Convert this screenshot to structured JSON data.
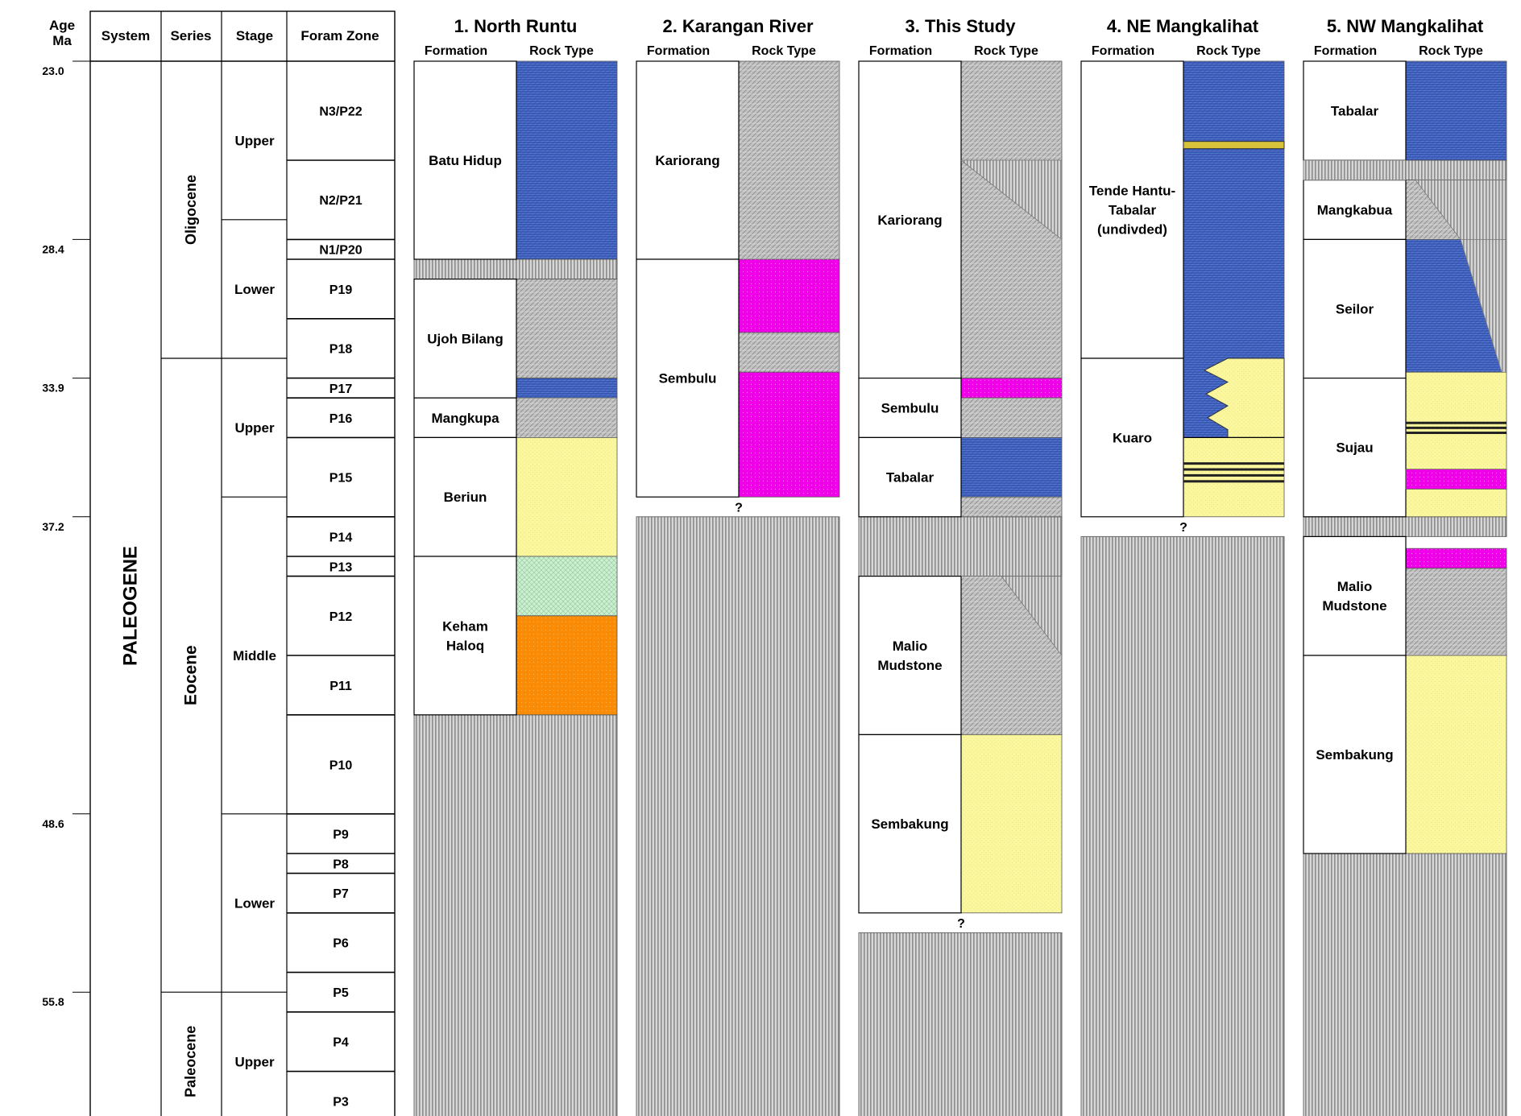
{
  "header": {
    "age": [
      "Age",
      "Ma"
    ],
    "system": "System",
    "series": "Series",
    "stage": "Stage",
    "foram_zone": "Foram Zone",
    "formation": "Formation",
    "rock_type": "Rock Type"
  },
  "ages": [
    "23.0",
    "28.4",
    "33.9",
    "37.2",
    "48.6",
    "55.8"
  ],
  "system_name": "PALEOGENE",
  "series": [
    {
      "name": "Oligocene",
      "label": "Oligocene",
      "top": 0,
      "bottom": 15
    },
    {
      "name": "Eocene",
      "label": "Eocene",
      "top": 15,
      "bottom": 47
    },
    {
      "name": "Paleocene",
      "label": "Paleocene",
      "top": 47,
      "bottom": 54
    }
  ],
  "stages": [
    {
      "name": "Upper",
      "top": 0,
      "bottom": 8
    },
    {
      "name": "Lower",
      "top": 8,
      "bottom": 15
    },
    {
      "name": "Upper",
      "top": 15,
      "bottom": 22
    },
    {
      "name": "Middle",
      "top": 22,
      "bottom": 38
    },
    {
      "name": "Lower",
      "top": 38,
      "bottom": 47
    },
    {
      "name": "Upper",
      "top": 47,
      "bottom": 54
    }
  ],
  "foram_zones": [
    {
      "name": "N3/P22",
      "top": 0,
      "bottom": 5
    },
    {
      "name": "N2/P21",
      "top": 5,
      "bottom": 9
    },
    {
      "name": "N1/P20",
      "top": 9,
      "bottom": 10
    },
    {
      "name": "P19",
      "top": 10,
      "bottom": 13
    },
    {
      "name": "P18",
      "top": 13,
      "bottom": 16
    },
    {
      "name": "P17",
      "top": 16,
      "bottom": 17
    },
    {
      "name": "P16",
      "top": 17,
      "bottom": 19
    },
    {
      "name": "P15",
      "top": 19,
      "bottom": 23
    },
    {
      "name": "P14",
      "top": 23,
      "bottom": 25
    },
    {
      "name": "P13",
      "top": 25,
      "bottom": 26
    },
    {
      "name": "P12",
      "top": 26,
      "bottom": 30
    },
    {
      "name": "P11",
      "top": 30,
      "bottom": 33
    },
    {
      "name": "P10",
      "top": 33,
      "bottom": 38
    },
    {
      "name": "P9",
      "top": 38,
      "bottom": 40
    },
    {
      "name": "P8",
      "top": 40,
      "bottom": 41
    },
    {
      "name": "P7",
      "top": 41,
      "bottom": 43
    },
    {
      "name": "P6",
      "top": 43,
      "bottom": 46
    },
    {
      "name": "P5",
      "top": 46,
      "bottom": 48
    },
    {
      "name": "P4",
      "top": 48,
      "bottom": 51
    },
    {
      "name": "P3",
      "top": 51,
      "bottom": 54
    }
  ],
  "rock_colors": {
    "blue": "#3A5BB8",
    "gray": "#B9B9B9",
    "magenta": "#F000E8",
    "yellow": "#FAF79E",
    "green": "#CDEED0",
    "orange": "#F98B06",
    "hiatus": "#BDBDBD"
  },
  "columns": [
    {
      "title": "1. North Runtu",
      "formations": [
        {
          "lines": [
            "Batu Hidup"
          ],
          "top": 0,
          "bottom": 10
        },
        {
          "lines": [
            "Ujoh Bilang"
          ],
          "top": 11,
          "bottom": 17
        },
        {
          "lines": [
            "Mangkupa"
          ],
          "top": 17,
          "bottom": 19
        },
        {
          "lines": [
            "Beriun"
          ],
          "top": 19,
          "bottom": 25
        },
        {
          "lines": [
            "Keham",
            "Haloq"
          ],
          "top": 25,
          "bottom": 33
        }
      ],
      "rocks": [
        {
          "color": "blue",
          "top": 0,
          "bottom": 10
        },
        {
          "color": "gray",
          "top": 11,
          "bottom": 16
        },
        {
          "color": "blue",
          "top": 16,
          "bottom": 17
        },
        {
          "color": "gray",
          "top": 17,
          "bottom": 19
        },
        {
          "color": "yellow",
          "top": 19,
          "bottom": 25
        },
        {
          "color": "green",
          "top": 25,
          "bottom": 28
        },
        {
          "color": "orange",
          "top": 28,
          "bottom": 33
        }
      ],
      "hiatus": [
        {
          "top": 10,
          "bottom": 11
        },
        {
          "top": 33,
          "bottom": 54
        }
      ],
      "question": []
    },
    {
      "title": "2. Karangan River",
      "formations": [
        {
          "lines": [
            "Kariorang"
          ],
          "top": 0,
          "bottom": 10
        },
        {
          "lines": [
            "Sembulu"
          ],
          "top": 10,
          "bottom": 22
        }
      ],
      "rocks": [
        {
          "color": "gray",
          "top": 0,
          "bottom": 10
        },
        {
          "color": "magenta",
          "top": 10,
          "bottom": 13.7
        },
        {
          "color": "gray",
          "top": 13.7,
          "bottom": 15.7
        },
        {
          "color": "magenta",
          "top": 15.7,
          "bottom": 22
        }
      ],
      "hiatus": [
        {
          "top": 23,
          "bottom": 54
        }
      ],
      "question": [
        22.5
      ]
    },
    {
      "title": "3. This Study",
      "formations": [
        {
          "lines": [
            "Kariorang"
          ],
          "top": 0,
          "bottom": 16
        },
        {
          "lines": [
            "Sembulu"
          ],
          "top": 16,
          "bottom": 19
        },
        {
          "lines": [
            "Tabalar"
          ],
          "top": 19,
          "bottom": 23
        },
        {
          "lines": [
            "Malio",
            "Mudstone"
          ],
          "top": 26,
          "bottom": 34
        },
        {
          "lines": [
            "Sembakung"
          ],
          "top": 34,
          "bottom": 43
        }
      ],
      "rocks": [
        {
          "color": "gray",
          "top": 0,
          "bottom": 16
        },
        {
          "color": "magenta",
          "top": 16,
          "bottom": 17
        },
        {
          "color": "gray",
          "top": 17,
          "bottom": 19
        },
        {
          "color": "blue",
          "top": 19,
          "bottom": 22
        },
        {
          "color": "gray",
          "top": 22,
          "bottom": 23
        },
        {
          "color": "gray",
          "top": 26,
          "bottom": 34
        },
        {
          "color": "yellow",
          "top": 34,
          "bottom": 43
        }
      ],
      "hiatus": [
        {
          "top": 23,
          "bottom": 26
        },
        {
          "top": 44,
          "bottom": 54
        }
      ],
      "question": [
        43.5
      ]
    },
    {
      "title": "4. NE Mangkalihat",
      "formations": [
        {
          "lines": [
            "Tende Hantu-",
            "Tabalar",
            "(undivded)"
          ],
          "top": 0,
          "bottom": 15
        },
        {
          "lines": [
            "Kuaro"
          ],
          "top": 15,
          "bottom": 23
        }
      ],
      "rocks": [
        {
          "color": "blue",
          "top": 0,
          "bottom": 19
        },
        {
          "color": "yellow",
          "top": 19,
          "bottom": 23
        }
      ],
      "hiatus": [
        {
          "top": 24,
          "bottom": 54
        }
      ],
      "question": [
        23.5
      ]
    },
    {
      "title": "5. NW Mangkalihat",
      "formations": [
        {
          "lines": [
            "Tabalar"
          ],
          "top": 0,
          "bottom": 5
        },
        {
          "lines": [
            "Mangkabua"
          ],
          "top": 6,
          "bottom": 9
        },
        {
          "lines": [
            "Seilor"
          ],
          "top": 9,
          "bottom": 16
        },
        {
          "lines": [
            "Sujau"
          ],
          "top": 16,
          "bottom": 23
        },
        {
          "lines": [
            "Malio",
            "Mudstone"
          ],
          "top": 24,
          "bottom": 30
        },
        {
          "lines": [
            "Sembakung"
          ],
          "top": 30,
          "bottom": 40
        }
      ],
      "rocks": [
        {
          "color": "blue",
          "top": 0,
          "bottom": 5
        },
        {
          "color": "gray",
          "top": 6,
          "bottom": 9
        },
        {
          "color": "blue",
          "top": 9,
          "bottom": 15.7
        },
        {
          "color": "yellow",
          "top": 15.7,
          "bottom": 23
        },
        {
          "color": "magenta",
          "top": 24.6,
          "bottom": 25.6
        },
        {
          "color": "gray",
          "top": 25.6,
          "bottom": 30
        },
        {
          "color": "yellow",
          "top": 30,
          "bottom": 40
        }
      ],
      "hiatus": [
        {
          "top": 5,
          "bottom": 6
        },
        {
          "top": 23,
          "bottom": 24
        },
        {
          "top": 40,
          "bottom": 54
        }
      ],
      "question": []
    }
  ]
}
